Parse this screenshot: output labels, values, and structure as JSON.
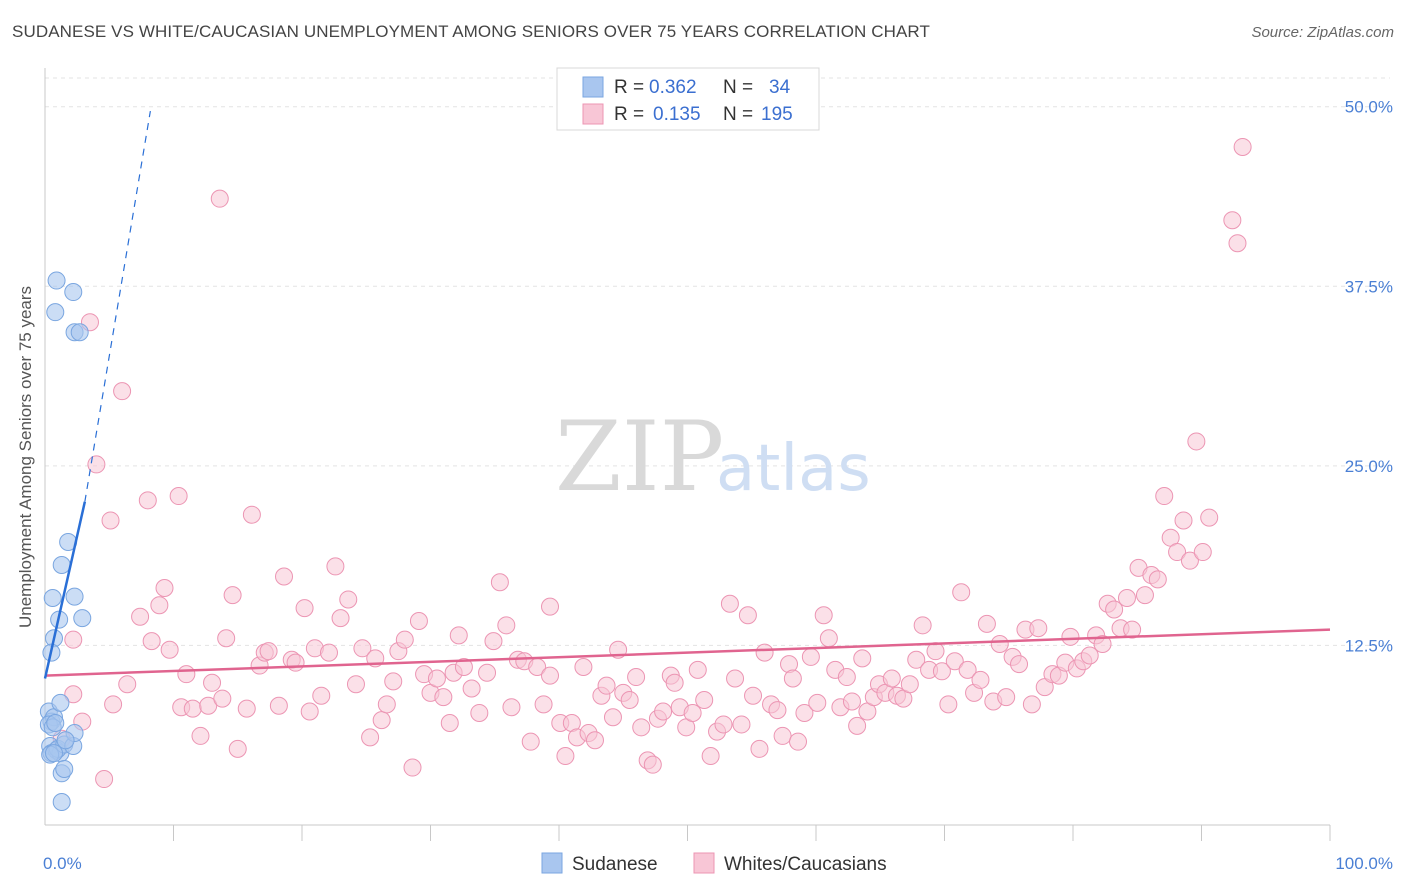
{
  "header": {
    "title": "SUDANESE VS WHITE/CAUCASIAN UNEMPLOYMENT AMONG SENIORS OVER 75 YEARS CORRELATION CHART",
    "source": "Source: ZipAtlas.com"
  },
  "watermark": {
    "zip": "ZIP",
    "atlas": "atlas"
  },
  "legend": {
    "rows": [
      {
        "r_label": "R =",
        "r_value": "0.362",
        "n_label": "N =",
        "n_value": "34"
      },
      {
        "r_label": "R =",
        "r_value": "0.135",
        "n_label": "N =",
        "n_value": "195"
      }
    ]
  },
  "chart_data": {
    "type": "scatter",
    "ylabel": "Unemployment Among Seniors over 75 years",
    "xlabel": "",
    "xlim": [
      0,
      100
    ],
    "ylim": [
      0,
      52
    ],
    "x_tick_labels": [
      "0.0%",
      "100.0%"
    ],
    "y_ticks": [
      12.5,
      25.0,
      37.5,
      50.0
    ],
    "y_tick_labels": [
      "12.5%",
      "25.0%",
      "37.5%",
      "50.0%"
    ],
    "grid": true,
    "legend_position": "top-center",
    "series": [
      {
        "name": "Sudanese",
        "color": "#a9c6ef",
        "edge": "#7aa6e0",
        "line_color": "#2a6fd6",
        "trend": {
          "x0": 0,
          "y0": 10.2,
          "x1": 3.1,
          "y1": 22.5,
          "dash_to_x": 8.2,
          "dash_to_y": 49.7
        },
        "points": [
          [
            0.3,
            7.9
          ],
          [
            0.5,
            7.2
          ],
          [
            0.7,
            7.5
          ],
          [
            0.3,
            7.0
          ],
          [
            0.6,
            6.8
          ],
          [
            0.8,
            7.1
          ],
          [
            0.4,
            5.5
          ],
          [
            0.5,
            5.0
          ],
          [
            0.9,
            5.2
          ],
          [
            1.2,
            5.0
          ],
          [
            1.0,
            5.3
          ],
          [
            1.5,
            5.6
          ],
          [
            2.2,
            5.5
          ],
          [
            2.3,
            6.4
          ],
          [
            1.3,
            3.6
          ],
          [
            1.5,
            3.9
          ],
          [
            1.3,
            1.6
          ],
          [
            1.2,
            8.5
          ],
          [
            0.7,
            13.0
          ],
          [
            0.5,
            12.0
          ],
          [
            0.6,
            15.8
          ],
          [
            1.1,
            14.3
          ],
          [
            2.3,
            15.9
          ],
          [
            2.9,
            14.4
          ],
          [
            1.3,
            18.1
          ],
          [
            1.8,
            19.7
          ],
          [
            0.8,
            35.7
          ],
          [
            0.9,
            37.9
          ],
          [
            2.2,
            37.1
          ],
          [
            2.3,
            34.3
          ],
          [
            2.7,
            34.3
          ],
          [
            0.4,
            4.9
          ],
          [
            0.7,
            5.0
          ],
          [
            1.6,
            5.9
          ]
        ]
      },
      {
        "name": "Whites/Caucasians",
        "color": "#f8c6d6",
        "edge": "#ec95b3",
        "line_color": "#e0648f",
        "trend": {
          "x0": 0,
          "y0": 10.4,
          "x1": 100,
          "y1": 13.6
        },
        "points": [
          [
            1.3,
            6.0
          ],
          [
            2.2,
            12.9
          ],
          [
            2.2,
            9.1
          ],
          [
            2.9,
            7.2
          ],
          [
            3.5,
            35.0
          ],
          [
            4.0,
            25.1
          ],
          [
            4.6,
            3.2
          ],
          [
            5.1,
            21.2
          ],
          [
            5.3,
            8.4
          ],
          [
            6.4,
            9.8
          ],
          [
            6.0,
            30.2
          ],
          [
            7.4,
            14.5
          ],
          [
            8.0,
            22.6
          ],
          [
            8.3,
            12.8
          ],
          [
            8.9,
            15.3
          ],
          [
            9.3,
            16.5
          ],
          [
            9.7,
            12.2
          ],
          [
            10.6,
            8.2
          ],
          [
            10.4,
            22.9
          ],
          [
            11.0,
            10.5
          ],
          [
            11.5,
            8.1
          ],
          [
            12.1,
            6.2
          ],
          [
            12.7,
            8.3
          ],
          [
            13.0,
            9.9
          ],
          [
            13.6,
            43.6
          ],
          [
            13.8,
            8.8
          ],
          [
            14.1,
            13.0
          ],
          [
            14.6,
            16.0
          ],
          [
            15.0,
            5.3
          ],
          [
            15.7,
            8.1
          ],
          [
            16.1,
            21.6
          ],
          [
            16.7,
            11.1
          ],
          [
            17.1,
            12.0
          ],
          [
            17.4,
            12.1
          ],
          [
            18.2,
            8.3
          ],
          [
            18.6,
            17.3
          ],
          [
            19.2,
            11.5
          ],
          [
            19.5,
            11.3
          ],
          [
            20.2,
            15.1
          ],
          [
            20.6,
            7.9
          ],
          [
            21.0,
            12.3
          ],
          [
            21.5,
            9.0
          ],
          [
            22.1,
            12.0
          ],
          [
            22.6,
            18.0
          ],
          [
            23.0,
            14.4
          ],
          [
            23.6,
            15.7
          ],
          [
            24.2,
            9.8
          ],
          [
            24.7,
            12.3
          ],
          [
            25.3,
            6.1
          ],
          [
            25.7,
            11.6
          ],
          [
            26.2,
            7.3
          ],
          [
            26.6,
            8.4
          ],
          [
            27.1,
            10.0
          ],
          [
            27.5,
            12.1
          ],
          [
            28.0,
            12.9
          ],
          [
            28.6,
            4.0
          ],
          [
            29.1,
            14.2
          ],
          [
            29.5,
            10.5
          ],
          [
            30.0,
            9.2
          ],
          [
            30.5,
            10.2
          ],
          [
            31.0,
            8.9
          ],
          [
            31.5,
            7.1
          ],
          [
            31.8,
            10.6
          ],
          [
            32.2,
            13.2
          ],
          [
            32.6,
            11.0
          ],
          [
            33.2,
            9.5
          ],
          [
            33.8,
            7.8
          ],
          [
            34.4,
            10.6
          ],
          [
            34.9,
            12.8
          ],
          [
            35.4,
            16.9
          ],
          [
            35.9,
            13.9
          ],
          [
            36.3,
            8.2
          ],
          [
            36.8,
            11.5
          ],
          [
            37.3,
            11.4
          ],
          [
            37.8,
            5.8
          ],
          [
            38.3,
            11.0
          ],
          [
            38.8,
            8.4
          ],
          [
            39.3,
            10.4
          ],
          [
            39.3,
            15.2
          ],
          [
            40.1,
            7.1
          ],
          [
            40.5,
            4.8
          ],
          [
            41.0,
            7.1
          ],
          [
            41.4,
            6.1
          ],
          [
            41.9,
            11.0
          ],
          [
            42.3,
            6.4
          ],
          [
            42.8,
            5.9
          ],
          [
            43.3,
            9.0
          ],
          [
            43.7,
            9.7
          ],
          [
            44.2,
            7.5
          ],
          [
            44.6,
            12.2
          ],
          [
            45.0,
            9.2
          ],
          [
            45.5,
            8.7
          ],
          [
            46.0,
            10.3
          ],
          [
            46.4,
            6.8
          ],
          [
            46.9,
            4.5
          ],
          [
            47.3,
            4.2
          ],
          [
            47.7,
            7.4
          ],
          [
            48.1,
            7.9
          ],
          [
            48.7,
            10.4
          ],
          [
            49.0,
            9.9
          ],
          [
            49.4,
            8.2
          ],
          [
            49.9,
            6.8
          ],
          [
            50.4,
            7.8
          ],
          [
            50.8,
            10.8
          ],
          [
            51.3,
            8.7
          ],
          [
            51.8,
            4.8
          ],
          [
            52.3,
            6.5
          ],
          [
            52.8,
            7.0
          ],
          [
            53.3,
            15.4
          ],
          [
            53.7,
            10.2
          ],
          [
            54.2,
            7.0
          ],
          [
            54.7,
            14.6
          ],
          [
            55.1,
            9.0
          ],
          [
            55.6,
            5.3
          ],
          [
            56.0,
            12.0
          ],
          [
            56.5,
            8.4
          ],
          [
            57.0,
            8.0
          ],
          [
            57.4,
            6.2
          ],
          [
            57.9,
            11.2
          ],
          [
            58.2,
            10.2
          ],
          [
            58.6,
            5.8
          ],
          [
            59.1,
            7.8
          ],
          [
            59.6,
            11.7
          ],
          [
            60.1,
            8.5
          ],
          [
            60.6,
            14.6
          ],
          [
            61.0,
            13.0
          ],
          [
            61.5,
            10.8
          ],
          [
            61.9,
            8.2
          ],
          [
            62.4,
            10.3
          ],
          [
            62.8,
            8.6
          ],
          [
            63.2,
            6.9
          ],
          [
            63.6,
            11.6
          ],
          [
            64.0,
            7.9
          ],
          [
            64.5,
            8.9
          ],
          [
            64.9,
            9.8
          ],
          [
            65.4,
            9.2
          ],
          [
            65.9,
            10.2
          ],
          [
            66.3,
            9.0
          ],
          [
            66.8,
            8.8
          ],
          [
            67.3,
            9.8
          ],
          [
            67.8,
            11.5
          ],
          [
            68.3,
            13.9
          ],
          [
            68.8,
            10.8
          ],
          [
            69.3,
            12.1
          ],
          [
            69.8,
            10.7
          ],
          [
            70.3,
            8.4
          ],
          [
            70.8,
            11.4
          ],
          [
            71.3,
            16.2
          ],
          [
            71.8,
            10.8
          ],
          [
            72.3,
            9.2
          ],
          [
            72.8,
            10.1
          ],
          [
            73.3,
            14.0
          ],
          [
            73.8,
            8.6
          ],
          [
            74.3,
            12.6
          ],
          [
            74.8,
            8.9
          ],
          [
            75.3,
            11.7
          ],
          [
            75.8,
            11.2
          ],
          [
            76.3,
            13.6
          ],
          [
            76.8,
            8.4
          ],
          [
            77.3,
            13.7
          ],
          [
            77.8,
            9.6
          ],
          [
            78.4,
            10.5
          ],
          [
            78.9,
            10.4
          ],
          [
            79.4,
            11.3
          ],
          [
            79.8,
            13.1
          ],
          [
            80.3,
            10.9
          ],
          [
            80.8,
            11.4
          ],
          [
            81.3,
            11.8
          ],
          [
            81.8,
            13.2
          ],
          [
            82.3,
            12.6
          ],
          [
            82.7,
            15.4
          ],
          [
            83.2,
            15.0
          ],
          [
            83.7,
            13.7
          ],
          [
            84.2,
            15.8
          ],
          [
            84.6,
            13.6
          ],
          [
            85.1,
            17.9
          ],
          [
            85.6,
            16.0
          ],
          [
            86.1,
            17.4
          ],
          [
            86.6,
            17.1
          ],
          [
            87.1,
            22.9
          ],
          [
            87.6,
            20.0
          ],
          [
            88.1,
            19.0
          ],
          [
            88.6,
            21.2
          ],
          [
            89.1,
            18.4
          ],
          [
            89.6,
            26.7
          ],
          [
            90.1,
            19.0
          ],
          [
            90.6,
            21.4
          ],
          [
            92.4,
            42.1
          ],
          [
            92.8,
            40.5
          ],
          [
            93.2,
            47.2
          ]
        ]
      }
    ]
  },
  "bottom_legend": [
    {
      "label": "Sudanese",
      "color": "#a9c6ef",
      "edge": "#7aa6e0"
    },
    {
      "label": "Whites/Caucasians",
      "color": "#f8c6d6",
      "edge": "#ec95b3"
    }
  ]
}
